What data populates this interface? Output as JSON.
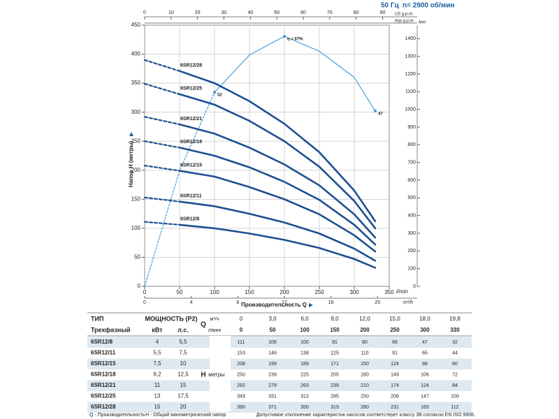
{
  "header": {
    "frequency": "50 Гц",
    "speed": "n= 2900 об/мин"
  },
  "chart_data": {
    "type": "line",
    "ylabel": "Напор H (метры)",
    "xlabel": "Производительность Q",
    "x_unit": "l/min",
    "x": [
      0,
      50,
      100,
      150,
      200,
      250,
      300,
      330
    ],
    "xlim": [
      0,
      350
    ],
    "xticks": [
      0,
      50,
      100,
      150,
      200,
      250,
      300,
      350
    ],
    "ylim": [
      0,
      450
    ],
    "yticks": [
      0,
      50,
      100,
      150,
      200,
      250,
      300,
      350,
      400,
      450
    ],
    "y2label": "feet",
    "y2lim": [
      0,
      1476
    ],
    "y2ticks": [
      0,
      100,
      200,
      300,
      400,
      500,
      600,
      700,
      800,
      900,
      1000,
      1100,
      1200,
      1300,
      1400
    ],
    "x_m3h": {
      "label": "m³/h",
      "lim": [
        0,
        21
      ],
      "ticks": [
        0,
        4,
        8,
        12,
        16,
        20
      ]
    },
    "x_usgpm": {
      "label": "US g.p.m.",
      "lim": [
        0,
        92.5
      ],
      "ticks": [
        0,
        10,
        20,
        30,
        40,
        50,
        60,
        70,
        80,
        90
      ]
    },
    "x_impgpm_label": "Imp g.p.m.",
    "grid": true,
    "series": [
      {
        "name": "6SR12/8",
        "color": "#1d4f91",
        "values": [
          111,
          106,
          100,
          91,
          80,
          66,
          47,
          32
        ]
      },
      {
        "name": "6SR12/11",
        "color": "#1d4f91",
        "values": [
          153,
          146,
          138,
          125,
          110,
          91,
          65,
          44
        ]
      },
      {
        "name": "6SR12/15",
        "color": "#1d4f91",
        "values": [
          208,
          199,
          189,
          171,
          150,
          124,
          88,
          60
        ]
      },
      {
        "name": "6SR12/18",
        "color": "#1d4f91",
        "values": [
          250,
          239,
          225,
          205,
          180,
          149,
          106,
          72
        ]
      },
      {
        "name": "6SR12/21",
        "color": "#1d4f91",
        "values": [
          292,
          279,
          263,
          239,
          210,
          174,
          124,
          84
        ]
      },
      {
        "name": "6SR12/25",
        "color": "#1d4f91",
        "values": [
          349,
          331,
          313,
          285,
          250,
          206,
          147,
          100
        ]
      },
      {
        "name": "6SR12/28",
        "color": "#1d4f91",
        "values": [
          390,
          371,
          350,
          319,
          280,
          231,
          165,
          112
        ]
      }
    ],
    "efficiency": {
      "color": "#3b9ad6",
      "lim": [
        0,
        70
      ],
      "values": [
        0,
        31,
        52,
        62,
        67,
        63,
        56,
        47
      ],
      "value_labels": [
        null,
        null,
        "52",
        null,
        "η = 67%",
        null,
        null,
        "47"
      ]
    }
  },
  "table": {
    "type_header": "ТИП",
    "power_header": "МОЩНОСТЬ (P2)",
    "q_symbol": "Q",
    "q_m3h_unit": "м³/ч",
    "q_m3h": [
      "0",
      "3,0",
      "6,0",
      "9,0",
      "12,0",
      "15,0",
      "18,0",
      "19,8"
    ],
    "phase": "Трехфазный",
    "kw_unit": "кВт",
    "hp_unit": "л.с.",
    "q_lmin_unit": "л/мин",
    "h_symbol": "H",
    "h_unit": "метры",
    "rows": [
      [
        "4",
        "5,5"
      ],
      [
        "5,5",
        "7,5"
      ],
      [
        "7,5",
        "10"
      ],
      [
        "9,2",
        "12,5"
      ],
      [
        "11",
        "15"
      ],
      [
        "13",
        "17,5"
      ],
      [
        "15",
        "20"
      ]
    ]
  },
  "footer": {
    "q_note": "Q - Производительность",
    "h_note": "H - Общий манометрический напор",
    "tolerance": "Допустимое отклонение характеристик насосов соответствует классу 3В согласно EN ISO 9906."
  }
}
